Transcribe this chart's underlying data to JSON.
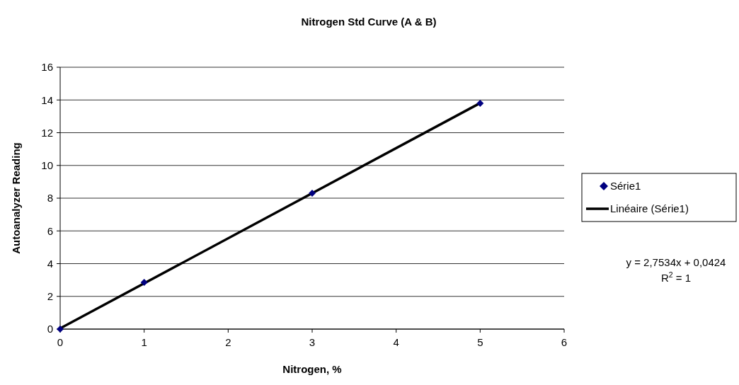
{
  "chart_data": {
    "type": "scatter",
    "title": "Nitrogen Std Curve (A & B)",
    "xlabel": "Nitrogen, %",
    "ylabel": "Autoanalyzer Reading",
    "xlim": [
      0,
      6
    ],
    "xticks": [
      0,
      1,
      2,
      3,
      4,
      5,
      6
    ],
    "ylim": [
      0,
      16
    ],
    "yticks": [
      0,
      2,
      4,
      6,
      8,
      10,
      12,
      14,
      16
    ],
    "grid": "y",
    "legend": "right",
    "series": [
      {
        "name": "Série1",
        "color": "#000080",
        "marker": "diamond",
        "x": [
          0,
          1,
          3,
          5
        ],
        "values": [
          0,
          2.85,
          8.3,
          13.8
        ]
      },
      {
        "name": "Linéaire (Série1)",
        "type": "line",
        "color": "#000000",
        "marker": "none",
        "line_style": "solid",
        "x": [
          0,
          5
        ],
        "values": [
          0.04,
          13.81
        ]
      }
    ],
    "annotations": [
      "y = 2,7534x + 0,0424",
      "R$^{2}$ = 1"
    ]
  }
}
